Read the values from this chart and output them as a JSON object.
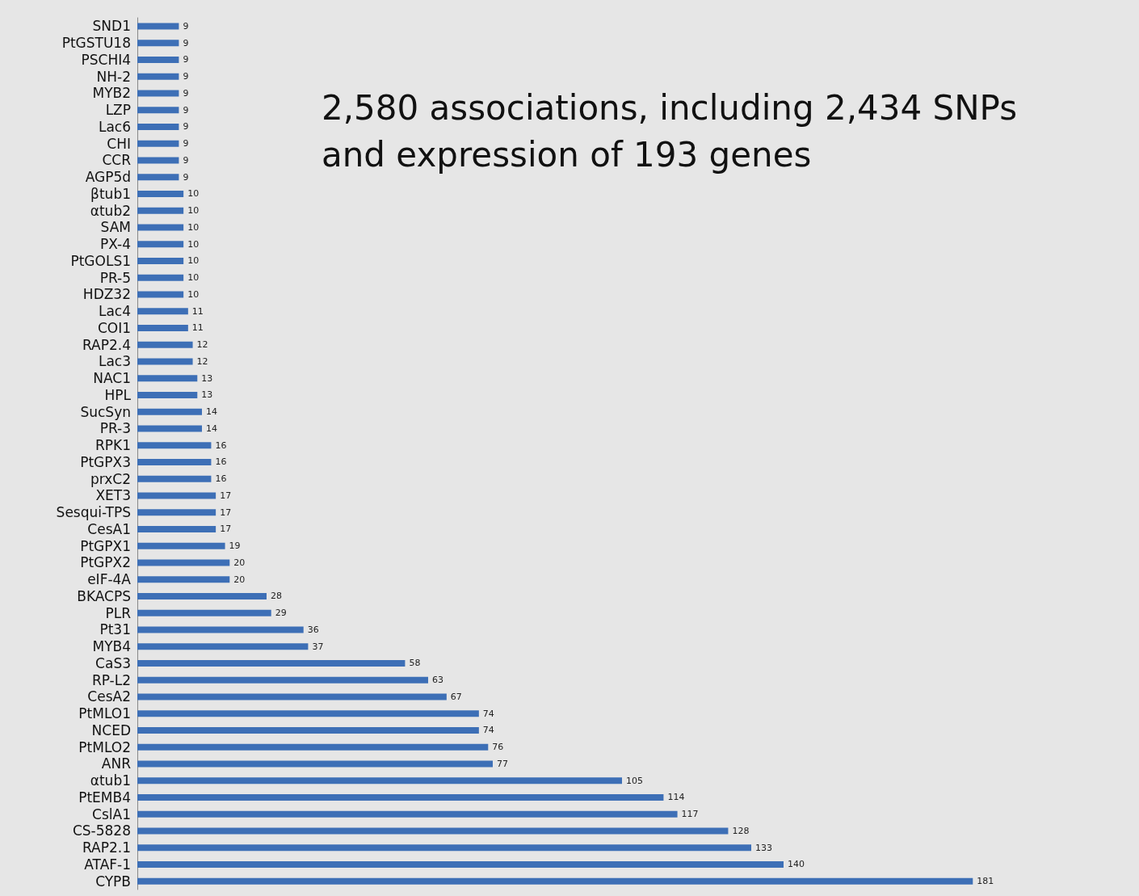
{
  "chart_data": {
    "type": "bar",
    "orientation": "horizontal",
    "data_labels": true,
    "color": "#3d6fb6",
    "categories": [
      "SND1",
      "PtGSTU18",
      "PSCHI4",
      "NH-2",
      "MYB2",
      "LZP",
      "Lac6",
      "CHI",
      "CCR",
      "AGP5d",
      "βtub1",
      "αtub2",
      "SAM",
      "PX-4",
      "PtGOLS1",
      "PR-5",
      "HDZ32",
      "Lac4",
      "COI1",
      "RAP2.4",
      "Lac3",
      "NAC1",
      "HPL",
      "SucSyn",
      "PR-3",
      "RPK1",
      "PtGPX3",
      "prxC2",
      "XET3",
      "Sesqui-TPS",
      "CesA1",
      "PtGPX1",
      "PtGPX2",
      "eIF-4A",
      "BKACPS",
      "PLR",
      "Pt31",
      "MYB4",
      "CaS3",
      "RP-L2",
      "CesA2",
      "PtMLO1",
      "NCED",
      "PtMLO2",
      "ANR",
      "αtub1",
      "PtEMB4",
      "CslA1",
      "CS-5828",
      "RAP2.1",
      "ATAF-1",
      "CYPB"
    ],
    "values": [
      9,
      9,
      9,
      9,
      9,
      9,
      9,
      9,
      9,
      9,
      10,
      10,
      10,
      10,
      10,
      10,
      10,
      11,
      11,
      12,
      12,
      13,
      13,
      14,
      14,
      16,
      16,
      16,
      17,
      17,
      17,
      19,
      20,
      20,
      28,
      29,
      36,
      37,
      58,
      63,
      67,
      74,
      74,
      76,
      77,
      105,
      114,
      117,
      128,
      133,
      140,
      181
    ],
    "annotations": [
      "2,580 associations, including 2,434 SNPs and expression of 193 genes"
    ]
  }
}
